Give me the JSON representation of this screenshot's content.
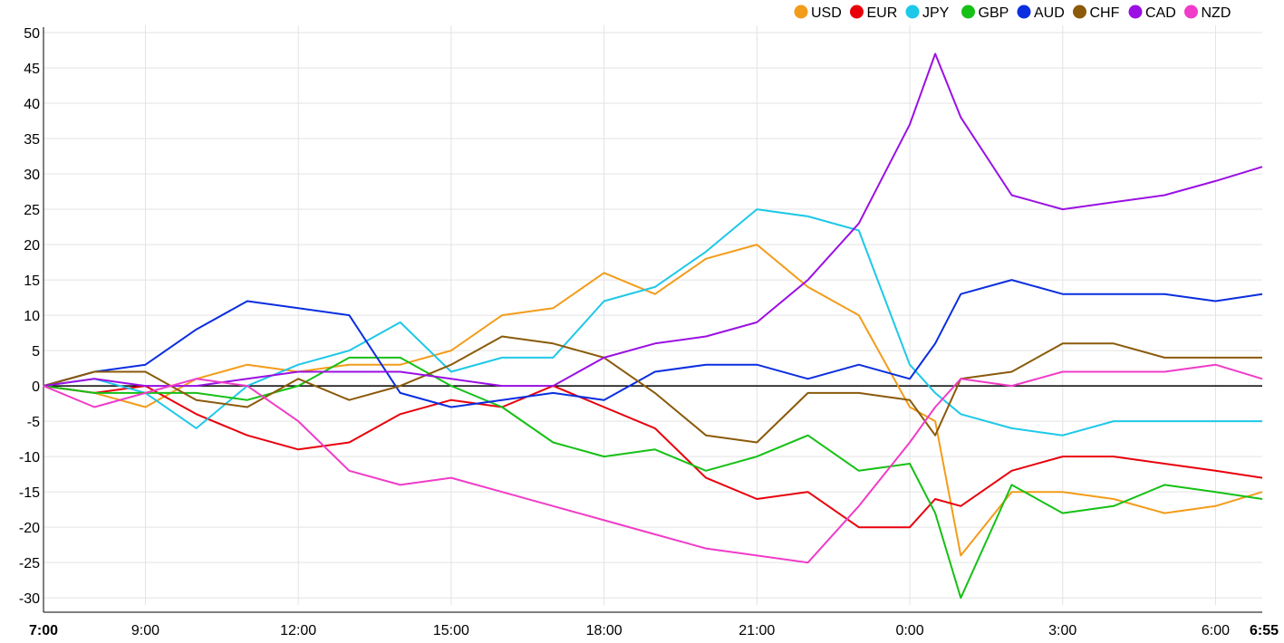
{
  "chart_data": {
    "type": "line",
    "title": "",
    "xlabel": "",
    "ylabel": "",
    "ylim": [
      -31,
      50
    ],
    "xlim": [
      "7:00",
      "6:55"
    ],
    "y_ticks": [
      "50",
      "45",
      "40",
      "35",
      "30",
      "25",
      "20",
      "15",
      "10",
      "5",
      "0",
      "-5",
      "-10",
      "-15",
      "-20",
      "-25",
      "-30"
    ],
    "x_ticks": [
      "7:00",
      "9:00",
      "12:00",
      "15:00",
      "18:00",
      "21:00",
      "0:00",
      "3:00",
      "6:00",
      "6:55"
    ],
    "x_ticks_bold": [
      "7:00",
      "6:55"
    ],
    "grid": true,
    "zero_line": true,
    "legend_position": "top-right",
    "x": [
      "7:00",
      "8:00",
      "9:00",
      "10:00",
      "11:00",
      "12:00",
      "13:00",
      "14:00",
      "15:00",
      "16:00",
      "17:00",
      "18:00",
      "19:00",
      "20:00",
      "21:00",
      "22:00",
      "23:00",
      "0:00",
      "0:30",
      "1:00",
      "2:00",
      "3:00",
      "4:00",
      "5:00",
      "6:00",
      "6:55"
    ],
    "series": [
      {
        "name": "USD",
        "color": "#f39c1a",
        "values": [
          0,
          -1,
          -3,
          1,
          3,
          2,
          3,
          3,
          5,
          10,
          11,
          16,
          13,
          18,
          20,
          14,
          10,
          -3,
          -5,
          -24,
          -15,
          -15,
          -16,
          -18,
          -17,
          -15
        ]
      },
      {
        "name": "EUR",
        "color": "#e8000b",
        "values": [
          0,
          -1,
          0,
          -4,
          -7,
          -9,
          -8,
          -4,
          -2,
          -3,
          0,
          -3,
          -6,
          -13,
          -16,
          -15,
          -20,
          -20,
          -16,
          -17,
          -12,
          -10,
          -10,
          -11,
          -12,
          -13
        ]
      },
      {
        "name": "JPY",
        "color": "#1ec8e8",
        "values": [
          0,
          1,
          -1,
          -6,
          0,
          3,
          5,
          9,
          2,
          4,
          4,
          12,
          14,
          19,
          25,
          24,
          22,
          3,
          -1,
          -4,
          -6,
          -7,
          -5,
          -5,
          -5,
          -5
        ]
      },
      {
        "name": "GBP",
        "color": "#16c016",
        "values": [
          0,
          -1,
          -1,
          -1,
          -2,
          0,
          4,
          4,
          0,
          -3,
          -8,
          -10,
          -9,
          -12,
          -10,
          -7,
          -12,
          -11,
          -18,
          -30,
          -14,
          -18,
          -17,
          -14,
          -15,
          -16
        ]
      },
      {
        "name": "AUD",
        "color": "#0a2ee0",
        "values": [
          0,
          2,
          3,
          8,
          12,
          11,
          10,
          -1,
          -3,
          -2,
          -1,
          -2,
          2,
          3,
          3,
          1,
          3,
          1,
          6,
          13,
          15,
          13,
          13,
          13,
          12,
          13
        ]
      },
      {
        "name": "CHF",
        "color": "#8b5a0a",
        "values": [
          0,
          2,
          2,
          -2,
          -3,
          1,
          -2,
          0,
          3,
          7,
          6,
          4,
          -1,
          -7,
          -8,
          -1,
          -1,
          -2,
          -7,
          1,
          2,
          6,
          6,
          4,
          4,
          4
        ]
      },
      {
        "name": "CAD",
        "color": "#9b10e3",
        "values": [
          0,
          1,
          0,
          0,
          1,
          2,
          2,
          2,
          1,
          0,
          0,
          4,
          6,
          7,
          9,
          15,
          23,
          37,
          47,
          38,
          27,
          25,
          26,
          27,
          29,
          31
        ]
      },
      {
        "name": "NZD",
        "color": "#f03cc8",
        "values": [
          0,
          -3,
          -1,
          1,
          0,
          -5,
          -12,
          -14,
          -13,
          -15,
          -17,
          -19,
          -21,
          -23,
          -24,
          -25,
          -17,
          -8,
          -3,
          1,
          0,
          2,
          2,
          2,
          3,
          1
        ]
      }
    ]
  }
}
